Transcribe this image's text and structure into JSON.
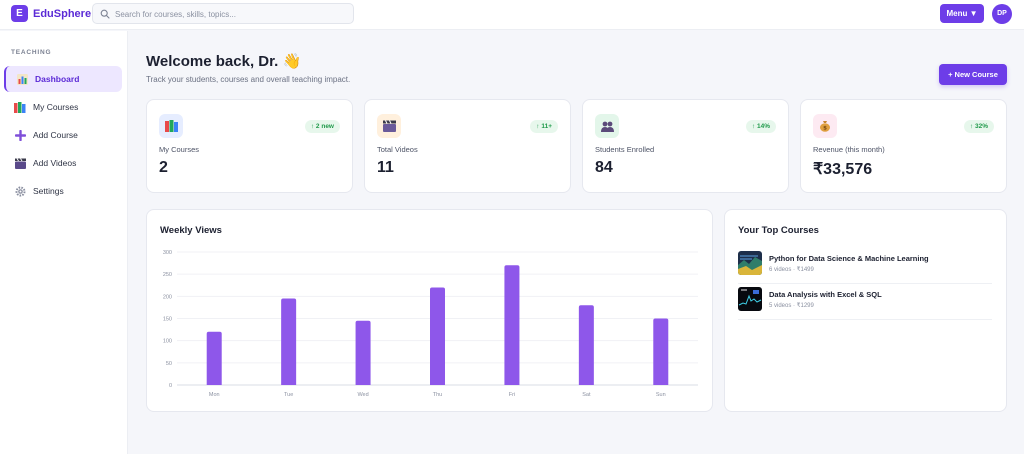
{
  "app": {
    "logo_letter": "E",
    "brand": "EduSphere",
    "search_placeholder": "Search for courses, skills, topics...",
    "menu_label": "Menu ▼",
    "avatar_initials": "DP"
  },
  "sidebar": {
    "section_label": "TEACHING",
    "items": [
      {
        "label": "Dashboard",
        "icon": "bar-chart-icon",
        "active": true
      },
      {
        "label": "My Courses",
        "icon": "books-icon",
        "active": false
      },
      {
        "label": "Add Course",
        "icon": "plus-icon",
        "active": false
      },
      {
        "label": "Add Videos",
        "icon": "clapper-icon",
        "active": false
      },
      {
        "label": "Settings",
        "icon": "gear-icon",
        "active": false
      }
    ]
  },
  "header": {
    "welcome": "Welcome back, Dr. 👋",
    "subtitle": "Track your students, courses and overall teaching impact.",
    "new_course_label": "+ New Course"
  },
  "stats": [
    {
      "label": "My Courses",
      "value": "2",
      "badge": "↑ 2 new",
      "icon": "books-icon",
      "icon_bg": "#e6edff"
    },
    {
      "label": "Total Videos",
      "value": "11",
      "badge": "↑ 11+",
      "icon": "clapper-icon",
      "icon_bg": "#fff0dd"
    },
    {
      "label": "Students Enrolled",
      "value": "84",
      "badge": "↑ 14%",
      "icon": "students-icon",
      "icon_bg": "#e3f6ea"
    },
    {
      "label": "Revenue (this month)",
      "value": "₹33,576",
      "badge": "↑ 32%",
      "icon": "money-bag-icon",
      "icon_bg": "#fdeaf2"
    }
  ],
  "chart_data": {
    "type": "bar",
    "title": "Weekly Views",
    "categories": [
      "Mon",
      "Tue",
      "Wed",
      "Thu",
      "Fri",
      "Sat",
      "Sun"
    ],
    "values": [
      120,
      195,
      145,
      220,
      270,
      180,
      150
    ],
    "ylim": [
      0,
      300
    ],
    "yticks": [
      0,
      50,
      100,
      150,
      200,
      250,
      300
    ],
    "xlabel": "",
    "ylabel": "",
    "grid": true,
    "bar_color": "#8e57ea"
  },
  "top_courses": {
    "title": "Your Top Courses",
    "items": [
      {
        "name": "Python for Data Science & Machine Learning",
        "meta": "6 videos · ₹1499"
      },
      {
        "name": "Data Analysis with Excel & SQL",
        "meta": "5 videos · ₹1299"
      }
    ]
  },
  "colors": {
    "accent": "#6d3de8",
    "positive": "#1f9a4a"
  }
}
